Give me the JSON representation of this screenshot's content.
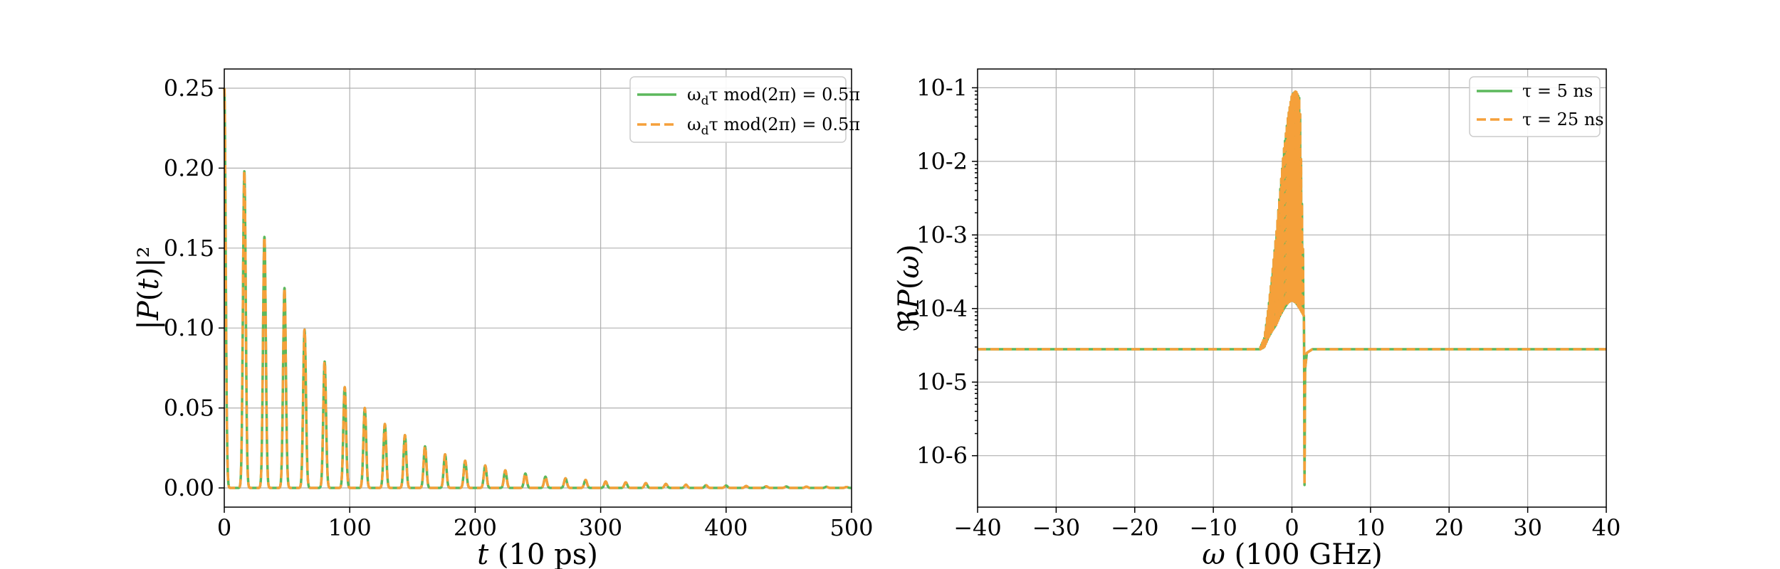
{
  "chart_data": [
    {
      "type": "line",
      "xlabel": "t (10 ps)",
      "ylabel": "|P(t)|²",
      "xlim": [
        0,
        500
      ],
      "ylim": [
        -0.012,
        0.262
      ],
      "xticks": [
        0,
        100,
        200,
        300,
        400,
        500
      ],
      "xtick_labels": [
        "0",
        "100",
        "200",
        "300",
        "400",
        "500"
      ],
      "yticks": [
        0.0,
        0.05,
        0.1,
        0.15,
        0.2,
        0.25
      ],
      "ytick_labels": [
        "0.00",
        "0.05",
        "0.10",
        "0.15",
        "0.20",
        "0.25"
      ],
      "grid": true,
      "legend_position": "top-right",
      "peak_spacing": 16,
      "peak_width": 1.1,
      "peaks": {
        "t": [
          0,
          16,
          32,
          48,
          64,
          80,
          96,
          112,
          128,
          144,
          160,
          176,
          192,
          208,
          224,
          240,
          256,
          272,
          288,
          304,
          320,
          336,
          352,
          368,
          384,
          400,
          416,
          432,
          448,
          464,
          480,
          496
        ],
        "value": [
          0.25,
          0.198,
          0.157,
          0.125,
          0.099,
          0.079,
          0.063,
          0.05,
          0.04,
          0.033,
          0.026,
          0.021,
          0.017,
          0.014,
          0.011,
          0.009,
          0.007,
          0.006,
          0.005,
          0.004,
          0.0035,
          0.003,
          0.0025,
          0.002,
          0.0017,
          0.0015,
          0.0012,
          0.001,
          0.0009,
          0.0008,
          0.0007,
          0.0006
        ]
      },
      "series": [
        {
          "name": "ωdτ mod(2π) = 0.5π",
          "color": "#5cb85c",
          "style": "solid"
        },
        {
          "name": "ωdτ mod(2π) = 0.5π",
          "color": "#f5a03a",
          "style": "dashed"
        }
      ]
    },
    {
      "type": "line",
      "xlabel": "ω (100 GHz)",
      "ylabel": "ℜP(ω)",
      "yscale": "log",
      "xlim": [
        -40,
        40
      ],
      "ylim": [
        2e-07,
        0.18
      ],
      "xticks": [
        -40,
        -30,
        -20,
        -10,
        0,
        10,
        20,
        30,
        40
      ],
      "xtick_labels": [
        "−40",
        "−30",
        "−20",
        "−10",
        "0",
        "10",
        "20",
        "30",
        "40"
      ],
      "yticks": [
        1e-06,
        1e-05,
        0.0001,
        0.001,
        0.01,
        0.1
      ],
      "ytick_labels": [
        "10-6",
        "10-5",
        "10-4",
        "10-3",
        "10-2",
        "10-1"
      ],
      "grid": true,
      "legend_position": "top-right",
      "baseline": 2.8e-05,
      "envelope": {
        "x": [
          -4.0,
          -3.5,
          -3.0,
          -2.5,
          -2.0,
          -1.5,
          -1.0,
          -0.5,
          0.0,
          0.5,
          1.0,
          1.5
        ],
        "upper": [
          3e-05,
          4e-05,
          0.0001,
          0.0003,
          0.001,
          0.004,
          0.015,
          0.04,
          0.08,
          0.09,
          0.07,
          0.0002
        ],
        "lower": [
          2.8e-05,
          3e-05,
          4e-05,
          5e-05,
          6e-05,
          8e-05,
          0.0001,
          0.00012,
          0.00013,
          0.00012,
          0.0001,
          8e-05
        ]
      },
      "dip": {
        "x": 1.6,
        "value": 4e-07
      },
      "series": [
        {
          "name": "τ = 5 ns",
          "color": "#5cb85c",
          "style": "solid"
        },
        {
          "name": "τ = 25 ns",
          "color": "#f5a03a",
          "style": "dashed"
        }
      ]
    }
  ]
}
